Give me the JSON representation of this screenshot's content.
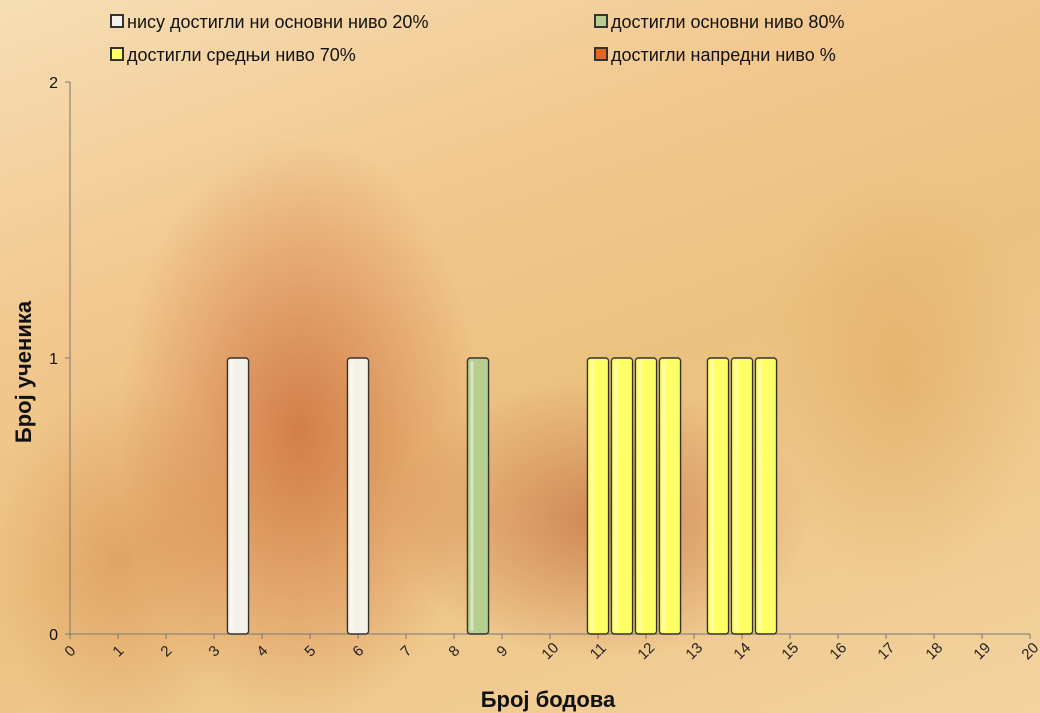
{
  "chart_data": {
    "type": "bar",
    "stacked": true,
    "categories": [
      "0",
      "1",
      "2",
      "3",
      "4",
      "5",
      "6",
      "7",
      "8",
      "9",
      "10",
      "11",
      "12",
      "13",
      "14",
      "15",
      "16",
      "17",
      "18",
      "19",
      "20"
    ],
    "bars": [
      {
        "x": 3.5,
        "value": 1,
        "level": "none"
      },
      {
        "x": 6,
        "value": 1,
        "level": "none"
      },
      {
        "x": 8.5,
        "value": 1,
        "level": "basic"
      },
      {
        "x": 11,
        "value": 1,
        "level": "intermediate"
      },
      {
        "x": 11.5,
        "value": 1,
        "level": "intermediate"
      },
      {
        "x": 12,
        "value": 1,
        "level": "intermediate"
      },
      {
        "x": 12.5,
        "value": 1,
        "level": "intermediate"
      },
      {
        "x": 13.5,
        "value": 1,
        "level": "intermediate"
      },
      {
        "x": 14,
        "value": 1,
        "level": "intermediate"
      },
      {
        "x": 14.5,
        "value": 1,
        "level": "intermediate"
      }
    ],
    "series": [
      {
        "key": "none",
        "name": "нису достигли ни основни ниво 20%",
        "color": "#f4f1e8"
      },
      {
        "key": "basic",
        "name": "достигли основни ниво 80%",
        "color": "#b7cf8e"
      },
      {
        "key": "intermediate",
        "name": "достигли средњи ниво 70%",
        "color": "#ffff66"
      },
      {
        "key": "advanced",
        "name": "достигли напредни ниво %",
        "color": "#e5661e"
      }
    ],
    "xlabel": "Број бодова",
    "ylabel": "Број ученика",
    "xlim": [
      0,
      20
    ],
    "ylim": [
      0,
      2
    ],
    "yticks": [
      0,
      1,
      2
    ],
    "legend_position": "top"
  }
}
